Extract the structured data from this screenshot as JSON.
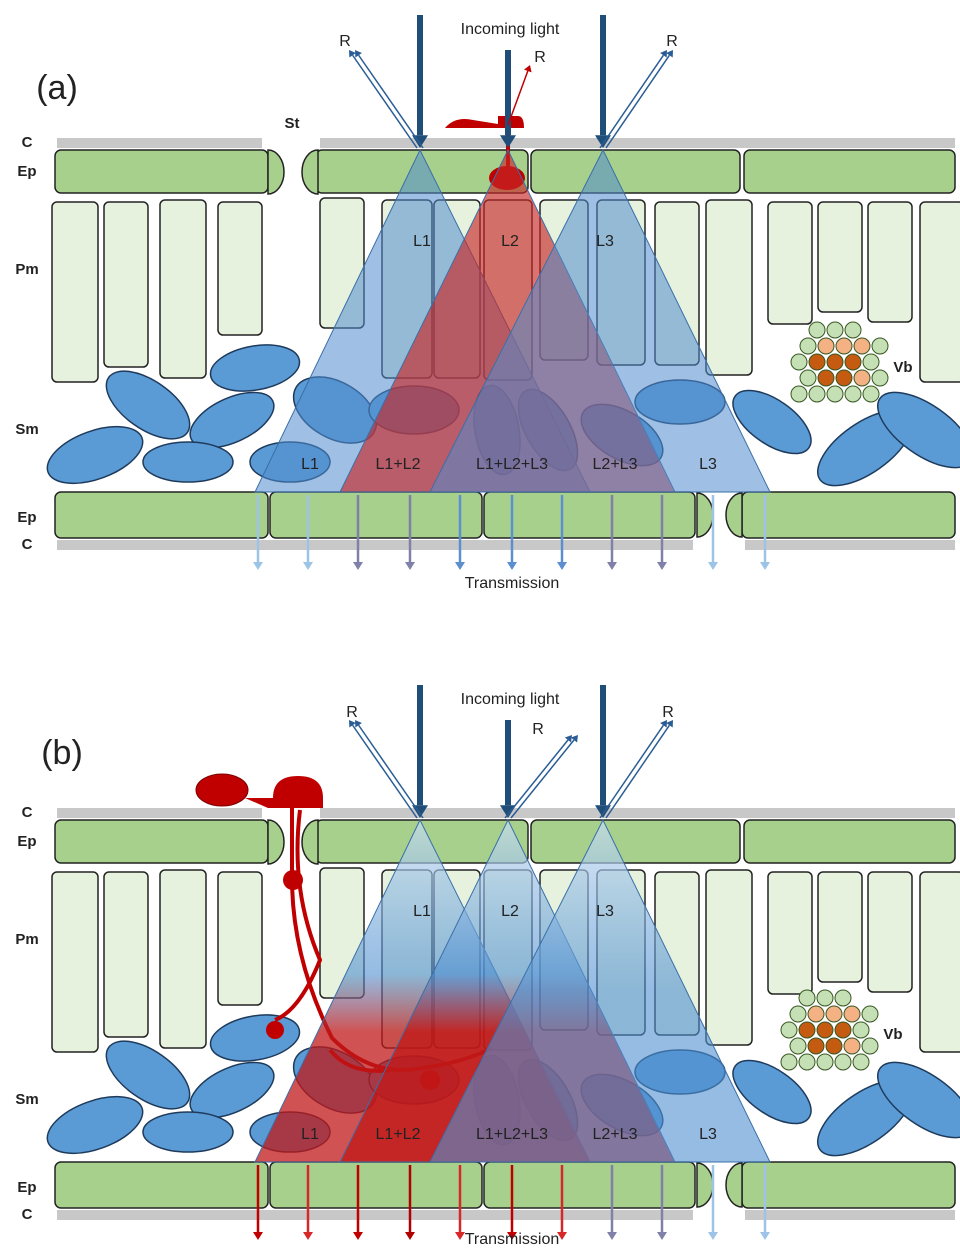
{
  "panels": [
    {
      "label": "(a)",
      "incoming": "Incoming light",
      "reflections": [
        "R",
        "R",
        "R"
      ],
      "layers": [
        "C",
        "Ep",
        "Pm",
        "Sm",
        "Ep",
        "C"
      ],
      "stoma": "St",
      "cones": [
        "L1",
        "L2",
        "L3"
      ],
      "mixes": [
        "L1",
        "L1+L2",
        "L1+L2+L3",
        "L2+L3",
        "L3"
      ],
      "bundle": "Vb",
      "transmission": "Transmission"
    },
    {
      "label": "(b)",
      "incoming": "Incoming light",
      "reflections": [
        "R",
        "R",
        "R"
      ],
      "layers": [
        "C",
        "Ep",
        "Pm",
        "Sm",
        "Ep",
        "C"
      ],
      "cones": [
        "L1",
        "L2",
        "L3"
      ],
      "mixes": [
        "L1",
        "L1+L2",
        "L1+L2+L3",
        "L2+L3",
        "L3"
      ],
      "bundle": "Vb",
      "transmission": "Transmission"
    }
  ]
}
